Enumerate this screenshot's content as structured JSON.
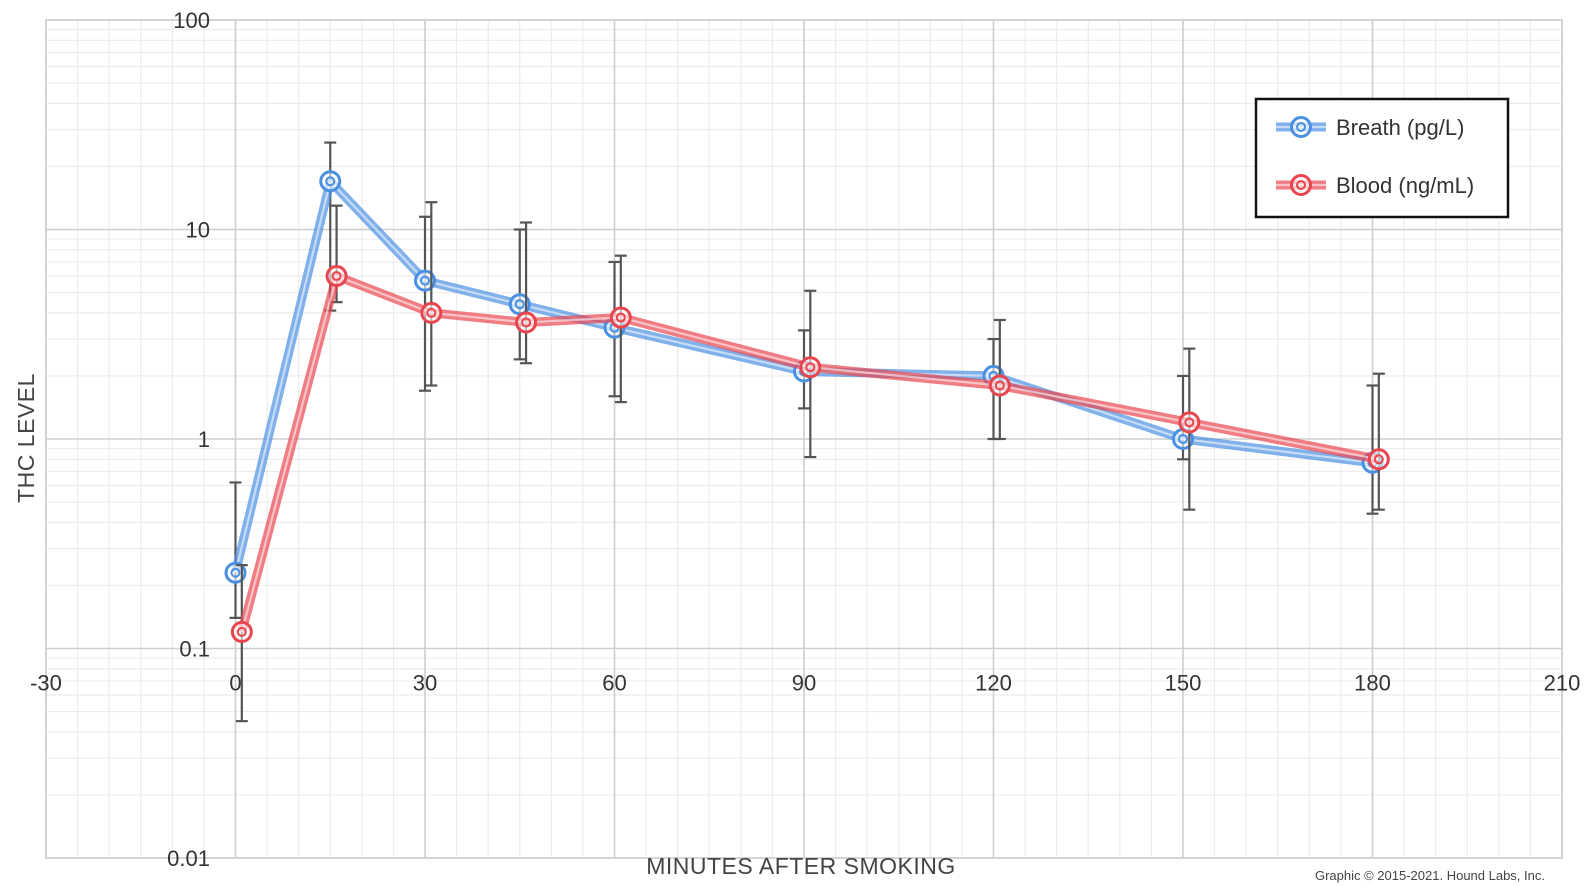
{
  "chart_data": {
    "type": "line",
    "title": "",
    "xlabel": "MINUTES AFTER SMOKING",
    "ylabel": "THC LEVEL",
    "xlim": [
      -30,
      210
    ],
    "ylim": [
      0.01,
      100
    ],
    "y_scale": "log",
    "x_ticks": [
      "-30",
      "0",
      "30",
      "60",
      "90",
      "120",
      "150",
      "180",
      "210"
    ],
    "y_ticks": [
      "0.01",
      "0.1",
      "1",
      "10",
      "100"
    ],
    "grid": true,
    "legend_position": "top-right",
    "series": [
      {
        "name": "Breath (pg/L)",
        "color": "#4a90e2",
        "x": [
          0,
          15,
          30,
          45,
          60,
          90,
          120,
          150,
          180
        ],
        "y": [
          0.23,
          17,
          5.7,
          4.4,
          3.4,
          2.1,
          2.0,
          1.0,
          0.77
        ],
        "err_low": [
          0.14,
          4.1,
          1.7,
          2.4,
          1.6,
          1.4,
          1.0,
          0.8,
          0.44
        ],
        "err_high": [
          0.62,
          26,
          11.5,
          10,
          7.0,
          3.3,
          3.0,
          2.0,
          1.8
        ]
      },
      {
        "name": "Blood (ng/mL)",
        "color": "#e8464e",
        "x": [
          1,
          16,
          31,
          46,
          61,
          91,
          121,
          151,
          181
        ],
        "y": [
          0.12,
          6.0,
          4.0,
          3.6,
          3.8,
          2.2,
          1.8,
          1.2,
          0.8
        ],
        "err_low": [
          0.045,
          4.5,
          1.8,
          2.3,
          1.5,
          0.82,
          1.0,
          0.46,
          0.46
        ],
        "err_high": [
          0.25,
          13,
          13.5,
          10.8,
          7.5,
          5.1,
          3.7,
          2.7,
          2.05
        ]
      }
    ],
    "credit": "Graphic © 2015-2021. Hound Labs, Inc."
  }
}
